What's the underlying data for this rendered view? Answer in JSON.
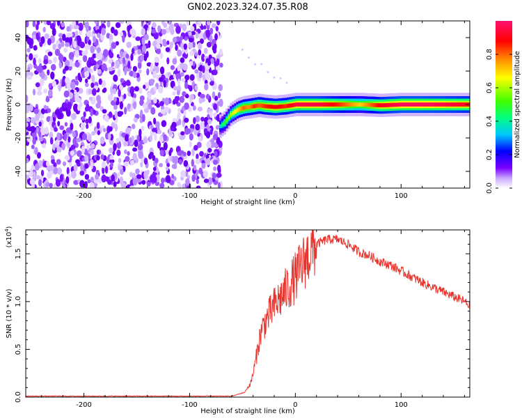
{
  "title": "GN02.2023.324.07.35.R08",
  "colors": {
    "snr_line": "#e8332c",
    "frame": "#000000",
    "colormap": [
      "#ffffff",
      "#7a00ff",
      "#0000ff",
      "#00c8ff",
      "#00ff80",
      "#40ff00",
      "#ffff00",
      "#ff8000",
      "#ff0000",
      "#ff1070"
    ]
  },
  "chart_data": [
    {
      "type": "heatmap",
      "title": "",
      "xlabel": "Height of straight line (km)",
      "ylabel": "Frequency (Hz)",
      "xlim": [
        -255,
        165
      ],
      "ylim": [
        -50,
        50
      ],
      "xticks": [
        -200,
        -100,
        0,
        100
      ],
      "yticks": [
        -40,
        -20,
        0,
        20,
        40
      ],
      "colorbar": {
        "label": "Normalized spectral amplitude",
        "range": [
          0.0,
          1.0
        ],
        "ticks": [
          "0.0",
          "0.2",
          "0.4",
          "0.6",
          "0.8"
        ]
      },
      "noise_region": {
        "x_from": -255,
        "x_to": -70,
        "y_from": -50,
        "y_to": 50
      },
      "ridge": {
        "x": [
          -72,
          -68,
          -62,
          -55,
          -50,
          -45,
          -40,
          -35,
          -30,
          -20,
          -10,
          0,
          20,
          40,
          60,
          80,
          100,
          120,
          140,
          165
        ],
        "y": [
          -13,
          -11,
          -6,
          -3,
          -2,
          -1.5,
          -1,
          -0.5,
          -1,
          -1.5,
          -1,
          0,
          0,
          0,
          0,
          -0.5,
          0,
          0,
          0,
          0
        ],
        "amplitude": [
          0.35,
          0.5,
          0.6,
          0.7,
          0.8,
          0.75,
          0.85,
          0.8,
          0.85,
          0.9,
          0.85,
          0.95,
          0.95,
          0.85,
          0.7,
          0.9,
          0.98,
          0.98,
          0.95,
          0.9
        ]
      }
    },
    {
      "type": "line",
      "title": "",
      "xlabel": "Height of straight line (km)",
      "ylabel": "SNR (10 * v/v)",
      "multiplier_label": "(x10",
      "multiplier_exp": "4",
      "xlim": [
        -255,
        165
      ],
      "ylim": [
        0,
        1.75
      ],
      "xticks": [
        -200,
        -100,
        0,
        100
      ],
      "yticks": [
        "0.0",
        "0.5",
        "1.0",
        "1.5"
      ],
      "series": [
        {
          "x": [
            -255,
            -100,
            -60,
            -48,
            -42,
            -38,
            -35,
            -32,
            -28,
            -20,
            -10,
            0,
            10,
            20,
            30,
            40,
            50,
            60,
            70,
            80,
            90,
            100,
            110,
            120,
            130,
            140,
            150,
            160,
            165
          ],
          "y": [
            0.01,
            0.01,
            0.01,
            0.05,
            0.15,
            0.35,
            0.55,
            0.7,
            0.8,
            0.95,
            1.1,
            1.25,
            1.45,
            1.6,
            1.65,
            1.65,
            1.6,
            1.52,
            1.48,
            1.42,
            1.38,
            1.32,
            1.26,
            1.2,
            1.15,
            1.1,
            1.05,
            1.0,
            0.95
          ]
        }
      ]
    }
  ]
}
